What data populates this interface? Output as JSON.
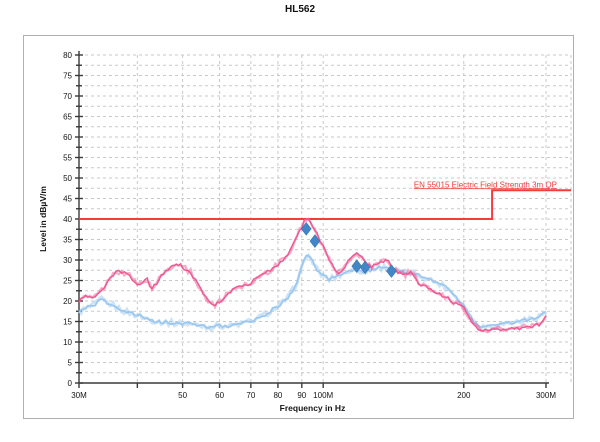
{
  "chart_data": {
    "type": "line",
    "title": "HL562",
    "xlabel": "Frequency in Hz",
    "ylabel": "Level in dBµV/m",
    "xscale": "log",
    "x_unit": "MHz",
    "xlim": [
      30,
      300
    ],
    "ylim": [
      0,
      80
    ],
    "y_tick_step": 5,
    "y_minor_step": 2.5,
    "grid": "dashed",
    "legend_position": "none",
    "x_ticks": [
      {
        "f": 30,
        "label": "30M"
      },
      {
        "f": 40,
        "label": ""
      },
      {
        "f": 50,
        "label": "50"
      },
      {
        "f": 60,
        "label": "60"
      },
      {
        "f": 70,
        "label": "70"
      },
      {
        "f": 80,
        "label": "80"
      },
      {
        "f": 90,
        "label": "90"
      },
      {
        "f": 100,
        "label": "100M"
      },
      {
        "f": 200,
        "label": "200"
      },
      {
        "f": 300,
        "label": "300M"
      }
    ],
    "limit_line": {
      "label": "EN 55015 Electric Field Strength 3m QP",
      "color": "#f63b3b",
      "points": [
        [
          30,
          40
        ],
        [
          230,
          40
        ],
        [
          230,
          47
        ],
        [
          300,
          47
        ]
      ]
    },
    "series": [
      {
        "name": "trace-light-blue",
        "color": "#9cc8ef",
        "x": [
          30,
          31,
          32,
          33,
          33.5,
          34.5,
          35.5,
          37,
          38,
          39,
          40,
          41.5,
          43,
          44.5,
          46,
          48,
          50,
          52.5,
          55,
          57.5,
          60,
          62.5,
          65,
          67.5,
          70,
          73,
          76,
          80,
          84,
          87,
          90,
          92,
          94,
          96,
          98,
          100,
          103,
          106,
          110,
          114,
          118,
          122,
          126,
          130,
          135,
          140,
          145,
          150,
          155,
          160,
          165,
          170,
          175,
          180,
          185,
          190,
          195,
          200,
          205,
          210,
          215,
          220,
          230,
          240,
          250,
          260,
          270,
          280,
          290,
          295,
          300
        ],
        "values": [
          17.3,
          18.2,
          18.6,
          19.8,
          20.4,
          19.5,
          19.0,
          17.8,
          17.3,
          16.9,
          16.5,
          15.9,
          15.3,
          15.0,
          14.8,
          14.6,
          14.5,
          14.3,
          14.0,
          13.6,
          14.0,
          13.8,
          14.2,
          14.6,
          15.1,
          16.0,
          17.1,
          18.6,
          20.8,
          23.5,
          28.0,
          31.2,
          30.4,
          28.4,
          27.0,
          26.1,
          25.3,
          25.8,
          26.8,
          27.3,
          27.6,
          27.2,
          27.5,
          28.0,
          28.2,
          27.8,
          27.2,
          26.8,
          26.9,
          26.4,
          25.7,
          25.1,
          24.5,
          23.8,
          23.0,
          21.8,
          20.3,
          18.8,
          16.8,
          15.0,
          14.0,
          13.7,
          14.0,
          14.3,
          14.6,
          14.9,
          15.2,
          15.7,
          16.4,
          16.9,
          17.4
        ]
      },
      {
        "name": "trace-pink",
        "color": "#ef5a92",
        "x": [
          30,
          31,
          32,
          33,
          34,
          35,
          36,
          37,
          38,
          39,
          40,
          41,
          42,
          43,
          44,
          45,
          46,
          47,
          48,
          49,
          50,
          52,
          54,
          56,
          58,
          60,
          62,
          64,
          66,
          68,
          70,
          72,
          74,
          77,
          80,
          83,
          85,
          87,
          89,
          91,
          93,
          95,
          97,
          100,
          103,
          106,
          108,
          110,
          113,
          116,
          118,
          121,
          124,
          127,
          130,
          133,
          136,
          138,
          140,
          143,
          146,
          150,
          154,
          158,
          162,
          166,
          170,
          175,
          180,
          185,
          190,
          195,
          200,
          205,
          210,
          215,
          220,
          230,
          240,
          250,
          260,
          270,
          280,
          290,
          295,
          300
        ],
        "values": [
          20.2,
          21.0,
          20.6,
          21.8,
          23.5,
          25.5,
          27.4,
          27.1,
          26.7,
          25.5,
          24.1,
          24.6,
          25.2,
          22.9,
          24.5,
          26.0,
          27.2,
          28.2,
          29.0,
          28.8,
          28.4,
          27.0,
          24.0,
          20.8,
          18.8,
          20.0,
          21.5,
          22.8,
          23.5,
          24.0,
          24.4,
          25.5,
          26.4,
          27.5,
          29.0,
          30.8,
          32.3,
          34.5,
          37.0,
          39.3,
          40.3,
          38.5,
          36.3,
          33.5,
          30.0,
          28.0,
          26.8,
          27.5,
          29.5,
          31.2,
          32.0,
          30.4,
          29.0,
          28.4,
          29.0,
          29.7,
          30.0,
          29.4,
          28.7,
          27.4,
          26.9,
          26.5,
          27.0,
          25.4,
          24.0,
          23.4,
          22.8,
          22.0,
          21.2,
          20.7,
          19.8,
          19.3,
          18.3,
          16.3,
          14.4,
          13.1,
          12.8,
          13.0,
          13.2,
          13.0,
          13.3,
          13.5,
          13.8,
          14.2,
          15.3,
          16.4
        ]
      }
    ],
    "markers": {
      "shape": "diamond",
      "color": "#4187c7",
      "points": [
        [
          92,
          37.6
        ],
        [
          96,
          34.6
        ],
        [
          118,
          28.5
        ],
        [
          123,
          28.2
        ],
        [
          140,
          27.3
        ]
      ]
    }
  },
  "style_colors": {
    "grid": "#c9c9c9",
    "axis": "#3a3a3a",
    "tick_label": "#151515",
    "frame_border": "#b0b0b0",
    "marker_edge": "#2e6da4"
  }
}
